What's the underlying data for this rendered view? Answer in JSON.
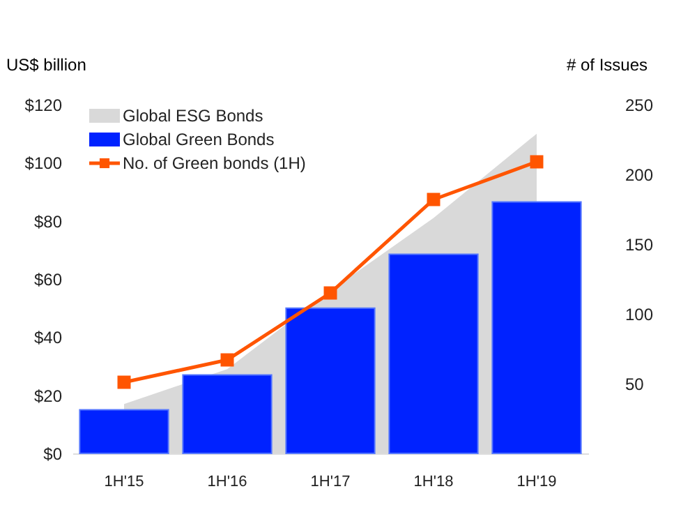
{
  "chart_data": {
    "type": "bar",
    "ylabel": "US$ billion",
    "y2label": "# of Issues",
    "categories": [
      "1H'15",
      "1H'16",
      "1H'17",
      "1H'18",
      "1H'19"
    ],
    "series": [
      {
        "name": "Global ESG Bonds",
        "type": "area",
        "color": "#d9d9d9",
        "values": [
          17,
          29,
          56,
          81,
          110
        ]
      },
      {
        "name": "Global Green Bonds",
        "color": "#0022ff",
        "values": [
          15,
          27,
          50,
          68.5,
          86.5
        ]
      },
      {
        "name": "No. of Green bonds (1H)",
        "type": "line",
        "axis": "y2",
        "color": "#ff5500",
        "marker": "square",
        "values": [
          51,
          67,
          115,
          182,
          209
        ]
      }
    ],
    "ylim": [
      0,
      120
    ],
    "yticks": [
      {
        "value": 0,
        "label": "$0"
      },
      {
        "value": 20,
        "label": "$20"
      },
      {
        "value": 40,
        "label": "$40"
      },
      {
        "value": 60,
        "label": "$60"
      },
      {
        "value": 80,
        "label": "$80"
      },
      {
        "value": 100,
        "label": "$100"
      },
      {
        "value": 120,
        "label": "$120"
      }
    ],
    "y2lim": [
      0,
      250
    ],
    "y2ticks": [
      50,
      100,
      150,
      200,
      250
    ],
    "grid": false,
    "legend": "top left"
  }
}
